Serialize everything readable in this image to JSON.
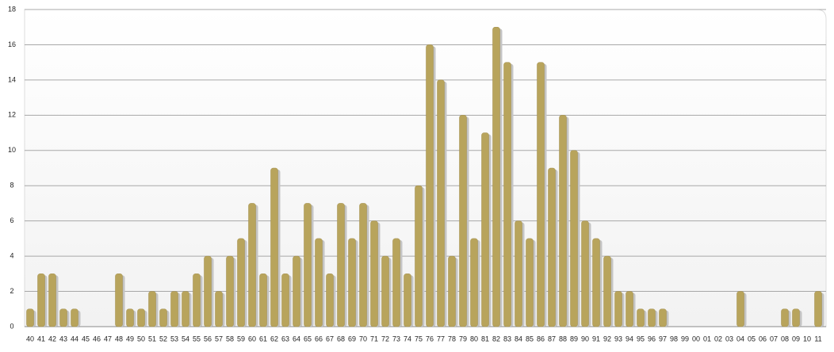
{
  "chart_data": {
    "type": "bar",
    "categories": [
      "40",
      "41",
      "42",
      "43",
      "44",
      "45",
      "46",
      "47",
      "48",
      "49",
      "50",
      "51",
      "52",
      "53",
      "54",
      "55",
      "56",
      "57",
      "58",
      "59",
      "60",
      "61",
      "62",
      "63",
      "64",
      "65",
      "66",
      "67",
      "68",
      "69",
      "70",
      "71",
      "72",
      "73",
      "74",
      "75",
      "76",
      "77",
      "78",
      "79",
      "80",
      "81",
      "82",
      "83",
      "84",
      "85",
      "86",
      "87",
      "88",
      "89",
      "90",
      "91",
      "92",
      "93",
      "94",
      "95",
      "96",
      "97",
      "98",
      "99",
      "00",
      "01",
      "02",
      "03",
      "04",
      "05",
      "06",
      "07",
      "08",
      "09",
      "10",
      "11"
    ],
    "values": [
      1,
      3,
      3,
      1,
      1,
      0,
      0,
      0,
      3,
      1,
      1,
      2,
      1,
      2,
      2,
      3,
      4,
      2,
      4,
      5,
      7,
      3,
      9,
      3,
      4,
      7,
      5,
      3,
      7,
      5,
      7,
      6,
      4,
      5,
      3,
      8,
      16,
      14,
      4,
      12,
      5,
      11,
      17,
      15,
      6,
      5,
      15,
      9,
      12,
      10,
      6,
      5,
      4,
      2,
      2,
      1,
      1,
      1,
      0,
      0,
      0,
      0,
      0,
      0,
      2,
      0,
      0,
      0,
      1,
      1,
      0,
      2
    ],
    "color": "#b8a45c",
    "ylim": [
      0,
      18
    ],
    "yticks": [
      0,
      2,
      4,
      6,
      8,
      10,
      12,
      14,
      16,
      18
    ],
    "grid": true
  }
}
